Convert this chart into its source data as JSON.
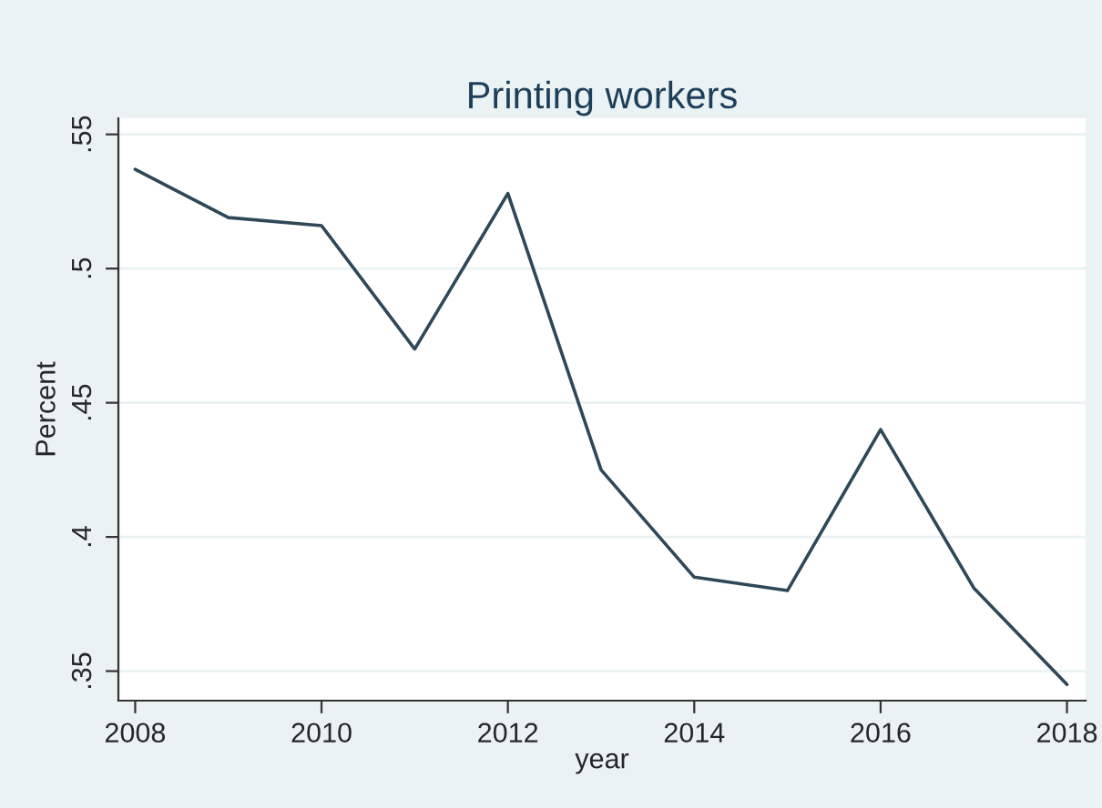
{
  "chart_data": {
    "type": "line",
    "title": "Printing workers",
    "xlabel": "year",
    "ylabel": "Percent",
    "x": [
      2008,
      2009,
      2010,
      2011,
      2012,
      2013,
      2014,
      2015,
      2016,
      2017,
      2018
    ],
    "series": [
      {
        "color": "#2f4858",
        "values": [
          0.537,
          0.519,
          0.516,
          0.47,
          0.528,
          0.425,
          0.385,
          0.38,
          0.44,
          0.381,
          0.345
        ]
      }
    ],
    "xlim": [
      2007.82,
      2018.2
    ],
    "xticks": [
      2008,
      2010,
      2012,
      2014,
      2016,
      2018
    ],
    "ylim": [
      0.339,
      0.556
    ],
    "yticks": [
      {
        "value": 0.35,
        "label": ".35"
      },
      {
        "value": 0.4,
        "label": ".4"
      },
      {
        "value": 0.45,
        "label": ".45"
      },
      {
        "value": 0.5,
        "label": ".5"
      },
      {
        "value": 0.55,
        "label": ".55"
      }
    ],
    "grid": "y",
    "legend": false,
    "marker": "none",
    "line_style": "solid"
  }
}
